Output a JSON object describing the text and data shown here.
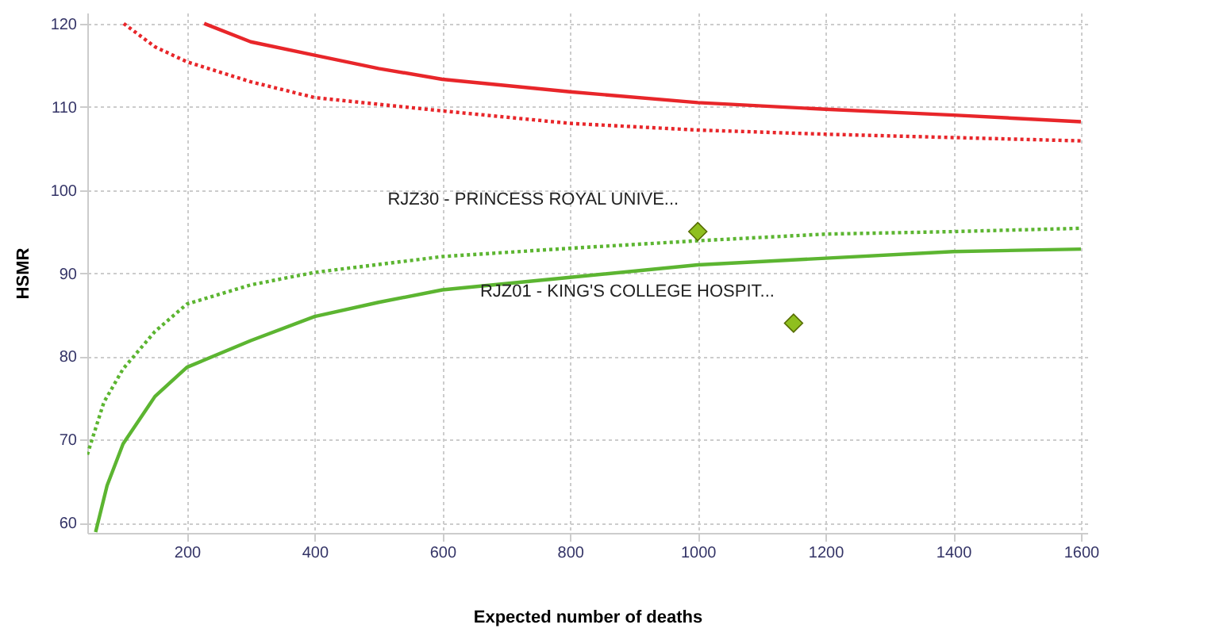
{
  "chart_data": {
    "type": "line",
    "xlabel": "Expected number of deaths",
    "ylabel": "HSMR",
    "xlim": [
      44,
      1610
    ],
    "ylim": [
      58.8,
      121.3
    ],
    "xticks": [
      200,
      400,
      600,
      800,
      1000,
      1200,
      1400,
      1600
    ],
    "yticks": [
      60,
      70,
      80,
      90,
      100,
      110,
      120
    ],
    "grid": true,
    "legend": false,
    "series": [
      {
        "type": "line",
        "line_style": "solid",
        "marker": "none",
        "color": "#e8262a",
        "x": [
          227,
          300,
          400,
          500,
          600,
          800,
          1000,
          1200,
          1400,
          1600
        ],
        "values": [
          120,
          117.8,
          116.2,
          114.6,
          113.3,
          111.8,
          110.5,
          109.7,
          109.0,
          108.2
        ]
      },
      {
        "type": "line",
        "line_style": "dotted",
        "marker": "none",
        "color": "#e8262a",
        "x": [
          101,
          150,
          200,
          300,
          400,
          600,
          800,
          1000,
          1200,
          1400,
          1600
        ],
        "values": [
          120,
          117.2,
          115.4,
          113.0,
          111.1,
          109.5,
          108.0,
          107.2,
          106.7,
          106.3,
          105.9
        ]
      },
      {
        "type": "line",
        "line_style": "dotted",
        "marker": "none",
        "color": "#5cb531",
        "x": [
          44,
          70,
          100,
          150,
          200,
          300,
          400,
          600,
          800,
          1000,
          1200,
          1400,
          1600
        ],
        "values": [
          68.2,
          74.5,
          78.5,
          83.0,
          86.3,
          88.6,
          90.1,
          92.0,
          93.0,
          93.9,
          94.7,
          95.0,
          95.4
        ]
      },
      {
        "type": "line",
        "line_style": "solid",
        "marker": "none",
        "color": "#5cb531",
        "x": [
          57,
          75,
          100,
          150,
          200,
          300,
          400,
          500,
          600,
          800,
          1000,
          1200,
          1400,
          1600
        ],
        "values": [
          58.9,
          64.5,
          69.5,
          75.2,
          78.7,
          81.9,
          84.8,
          86.5,
          88.0,
          89.5,
          91.0,
          91.8,
          92.6,
          92.9
        ]
      },
      {
        "type": "scatter",
        "marker": "diamond",
        "color": "#8fbf1f",
        "x": [
          1000,
          1150
        ],
        "values": [
          95,
          84
        ]
      }
    ],
    "annotations": [
      {
        "text": "RJZ30 - PRINCESS ROYAL UNIVE...",
        "x": 1000,
        "y": 95
      },
      {
        "text": "RJZ01 - KING'S COLLEGE HOSPIT...",
        "x": 1150,
        "y": 84
      }
    ]
  }
}
